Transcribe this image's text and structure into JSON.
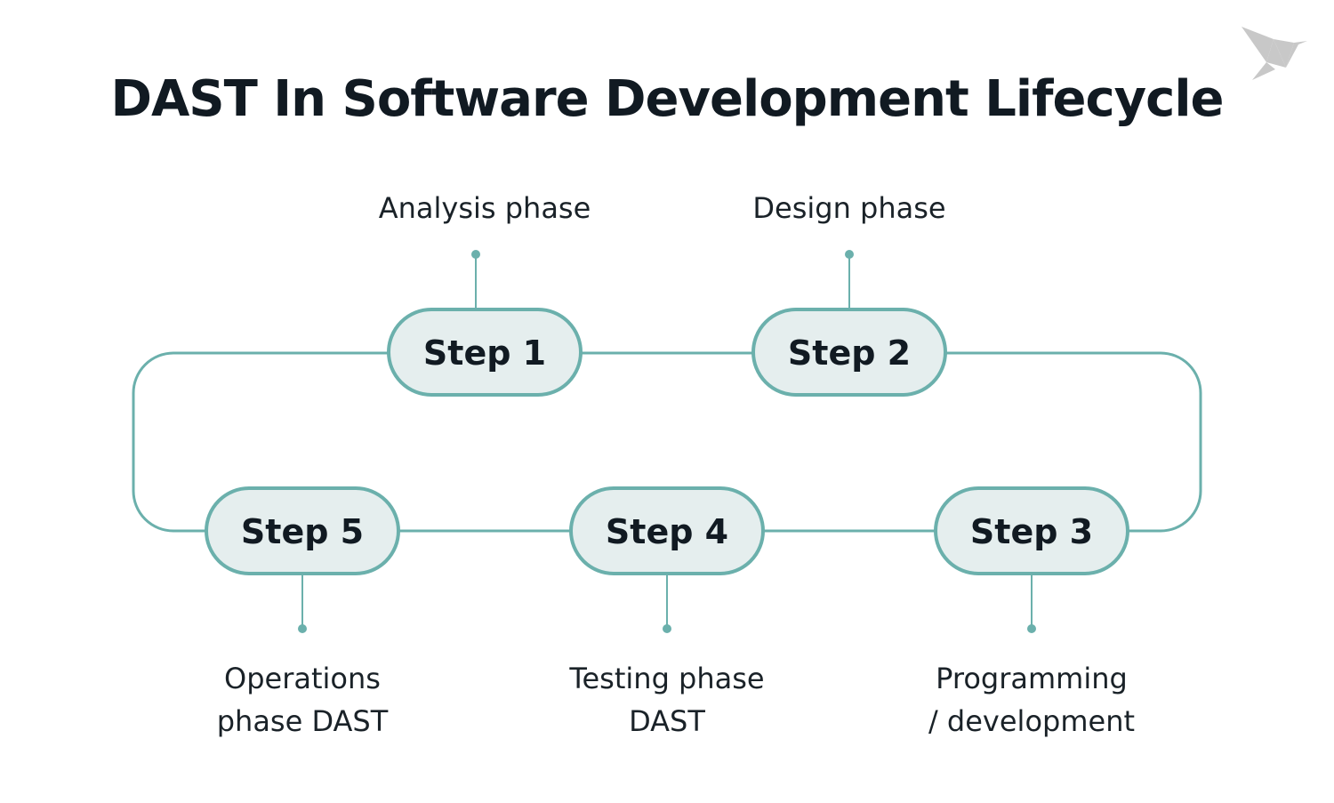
{
  "title": "DAST In Software Development Lifecycle",
  "colors": {
    "line": "#6BB0AC",
    "pill_fill": "#E5EEEE",
    "text": "#111A22",
    "logo": "#C8C8C8"
  },
  "logo_icon": "origami-bird-icon",
  "steps": [
    {
      "label": "Step 1",
      "caption": [
        "Analysis phase"
      ]
    },
    {
      "label": "Step 2",
      "caption": [
        "Design phase"
      ]
    },
    {
      "label": "Step 3",
      "caption": [
        "Programming",
        "/ development"
      ]
    },
    {
      "label": "Step 4",
      "caption": [
        "Testing phase",
        "DAST"
      ]
    },
    {
      "label": "Step 5",
      "caption": [
        "Operations",
        "phase DAST"
      ]
    }
  ]
}
